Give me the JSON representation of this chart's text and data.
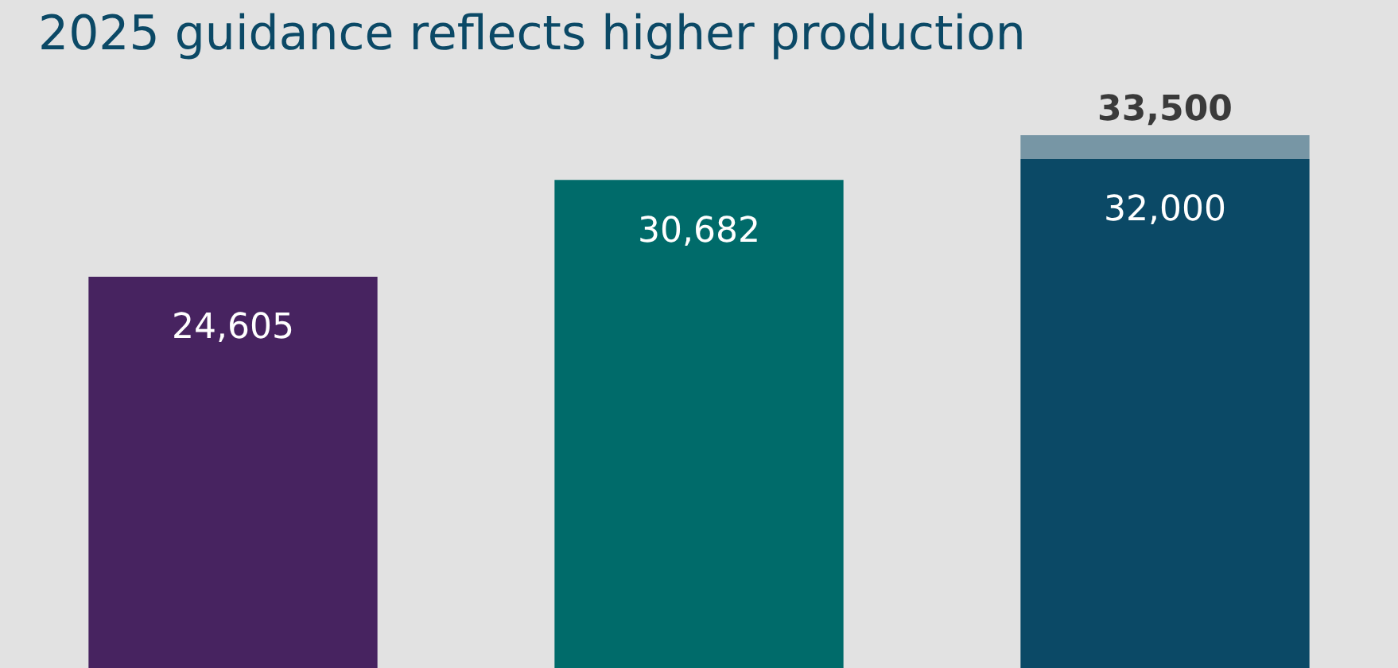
{
  "chart_data": {
    "type": "bar",
    "title": "2025 guidance reflects higher production",
    "categories": [
      null,
      null,
      null
    ],
    "stacked": true,
    "series": [
      {
        "colors": [
          "#472360",
          "#006b6a",
          "#0b4966"
        ],
        "values": [
          24605,
          30682,
          32000
        ],
        "value_labels": [
          "24,605",
          "30,682",
          "32,000"
        ]
      },
      {
        "color": "#7796a5",
        "values": [
          null,
          null,
          1500
        ]
      }
    ],
    "totals": [
      null,
      null,
      "33,500"
    ],
    "legend": false,
    "tick_labels": false
  }
}
